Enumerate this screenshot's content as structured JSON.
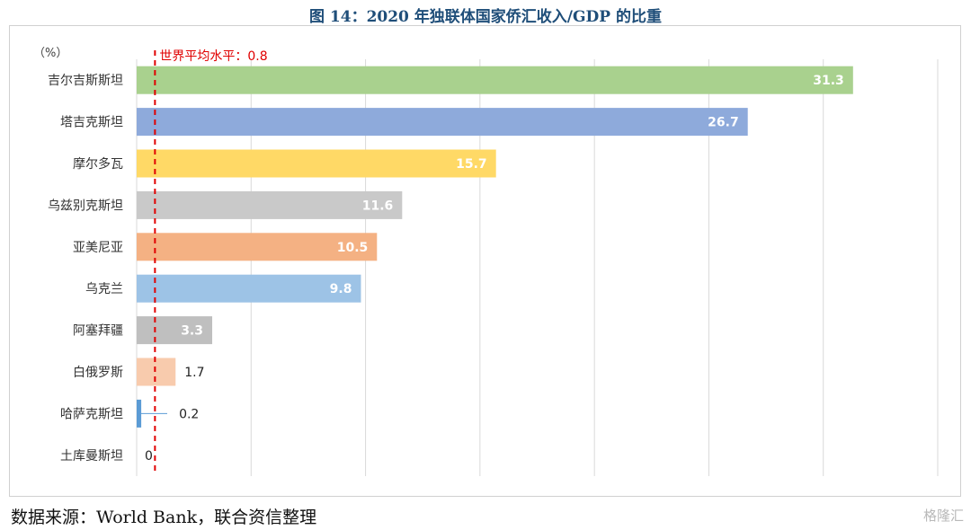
{
  "title": "图 14：2020 年独联体国家侨汇收入/GDP 的比重",
  "source": "数据来源：World Bank，联合资信整理",
  "watermark": "格隆汇",
  "chart_data": {
    "type": "bar",
    "orientation": "horizontal",
    "unit_label": "（%）",
    "categories": [
      "吉尔吉斯斯坦",
      "塔吉克斯坦",
      "摩尔多瓦",
      "乌兹别克斯坦",
      "亚美尼亚",
      "乌克兰",
      "阿塞拜疆",
      "白俄罗斯",
      "哈萨克斯坦",
      "土库曼斯坦"
    ],
    "values": [
      31.3,
      26.7,
      15.7,
      11.6,
      10.5,
      9.8,
      3.3,
      1.7,
      0.2,
      0
    ],
    "value_labels": [
      "31.3",
      "26.7",
      "15.7",
      "11.6",
      "10.5",
      "9.8",
      "3.3",
      "1.7",
      "0.2",
      "0"
    ],
    "colors": [
      "#a9d18e",
      "#8eaadb",
      "#ffd966",
      "#c9c9c9",
      "#f4b183",
      "#9dc3e6",
      "#bfbfbf",
      "#f8cbad",
      "#5b9bd5",
      "#a5a5a5"
    ],
    "xlim": [
      0,
      35
    ],
    "x_grid_step": 5,
    "grid": true,
    "reference_line": {
      "value": 0.8,
      "label": "世界平均水平：0.8",
      "color": "#e00000",
      "style": "dashed"
    }
  }
}
